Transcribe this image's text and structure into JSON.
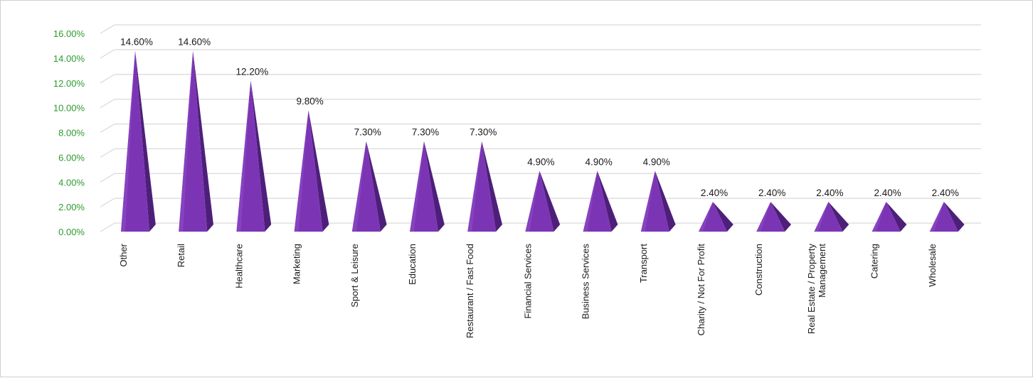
{
  "chart_data": {
    "type": "bar",
    "categories": [
      "Other",
      "Retail",
      "Healthcare",
      "Marketing",
      "Sport & Leisure",
      "Education",
      "Restaurant / Fast Food",
      "Financial Services",
      "Business Services",
      "Transport",
      "Charity / Not For Profit",
      "Construction",
      "Real Estate / Property Management",
      "Catering",
      "Wholesale"
    ],
    "category_lines": [
      [
        "Other"
      ],
      [
        "Retail"
      ],
      [
        "Healthcare"
      ],
      [
        "Marketing"
      ],
      [
        "Sport & Leisure"
      ],
      [
        "Education"
      ],
      [
        "Restaurant / Fast Food"
      ],
      [
        "Financial Services"
      ],
      [
        "Business Services"
      ],
      [
        "Transport"
      ],
      [
        "Charity / Not For Profit"
      ],
      [
        "Construction"
      ],
      [
        "Real Estate / Property",
        "Management"
      ],
      [
        "Catering"
      ],
      [
        "Wholesale"
      ]
    ],
    "values": [
      14.6,
      14.6,
      12.2,
      9.8,
      7.3,
      7.3,
      7.3,
      4.9,
      4.9,
      4.9,
      2.4,
      2.4,
      2.4,
      2.4,
      2.4
    ],
    "data_labels": [
      "14.60%",
      "14.60%",
      "12.20%",
      "9.80%",
      "7.30%",
      "7.30%",
      "7.30%",
      "4.90%",
      "4.90%",
      "4.90%",
      "2.40%",
      "2.40%",
      "2.40%",
      "2.40%",
      "2.40%"
    ],
    "ylim": [
      0,
      16
    ],
    "yticks": [
      "0.00%",
      "2.00%",
      "4.00%",
      "6.00%",
      "8.00%",
      "10.00%",
      "12.00%",
      "14.00%",
      "16.00%"
    ],
    "title": "",
    "xlabel": "",
    "ylabel": "",
    "bar_shape": "3d-pyramid",
    "grid": true,
    "colors": {
      "bar_front": "#7b35b4",
      "bar_side": "#4e1f7a",
      "tick_text": "#2e9a2e",
      "grid": "#d9d9d9"
    }
  }
}
